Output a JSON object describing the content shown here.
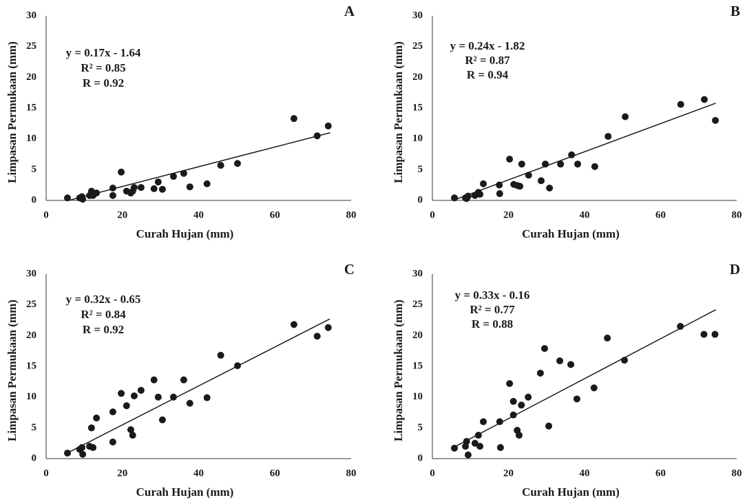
{
  "chart_data": [
    {
      "type": "scatter",
      "title": "A",
      "annotations": [
        "y = 0.17x - 1.64",
        "R² = 0.85",
        "R = 0.92"
      ],
      "x_label": "Curah Hujan (mm)",
      "y_label": "Limpasan Permukaan (mm)",
      "color": "#1a1a1a",
      "xlim": [
        0,
        80
      ],
      "xticks": [
        0,
        20,
        40,
        60,
        80
      ],
      "ylim": [
        0,
        30
      ],
      "yticks": [
        0,
        5,
        10,
        15,
        20,
        25,
        30
      ],
      "x": [
        5.6,
        8.8,
        9.6,
        9.4,
        11.4,
        11.9,
        12.3,
        13.2,
        17.5,
        17.5,
        19.7,
        21.1,
        22.2,
        22.7,
        23.1,
        24.9,
        28.3,
        29.4,
        30.5,
        33.4,
        36.1,
        37.7,
        42.2,
        45.8,
        50.2,
        65.0,
        71.1,
        74.0
      ],
      "values": [
        0.4,
        0.4,
        0.2,
        0.6,
        0.8,
        1.5,
        0.8,
        1.2,
        2.0,
        0.8,
        4.6,
        1.5,
        1.2,
        1.5,
        2.1,
        2.1,
        1.9,
        3.0,
        1.8,
        3.9,
        4.4,
        2.2,
        2.7,
        5.7,
        6.0,
        13.3,
        10.5,
        12.1
      ],
      "trendline": {
        "x": [
          6.5,
          74.5
        ],
        "values": [
          0.1,
          11.0
        ]
      }
    },
    {
      "type": "scatter",
      "title": "B",
      "annotations": [
        "y = 0.24x - 1.82",
        "R² = 0.87",
        "R = 0.94"
      ],
      "x_label": "Curah Hujan (mm)",
      "y_label": "Limpasan Permukaan (mm)",
      "color": "#1a1a1a",
      "xlim": [
        0,
        80
      ],
      "xticks": [
        0,
        20,
        40,
        60,
        80
      ],
      "ylim": [
        0,
        30
      ],
      "yticks": [
        0,
        5,
        10,
        15,
        20,
        25,
        30
      ],
      "x": [
        5.8,
        8.7,
        9.4,
        9.0,
        11.2,
        12.1,
        12.5,
        13.4,
        17.6,
        17.7,
        20.3,
        21.4,
        22.4,
        23.0,
        23.5,
        25.3,
        28.6,
        29.7,
        30.8,
        33.7,
        36.6,
        38.2,
        42.7,
        46.2,
        50.7,
        65.3,
        71.5,
        74.4
      ],
      "values": [
        0.4,
        0.4,
        0.7,
        0.3,
        0.8,
        1.3,
        1.0,
        2.7,
        2.5,
        1.1,
        6.7,
        2.6,
        2.4,
        2.3,
        5.9,
        4.1,
        3.2,
        5.9,
        2.0,
        5.9,
        7.4,
        5.9,
        5.5,
        10.4,
        13.6,
        15.6,
        16.4,
        13.0
      ],
      "trendline": {
        "x": [
          6.3,
          74.5
        ],
        "values": [
          0.2,
          15.8
        ]
      }
    },
    {
      "type": "scatter",
      "title": "C",
      "annotations": [
        "y = 0.32x - 0.65",
        "R² = 0.84",
        "R = 0.92"
      ],
      "x_label": "Curah Hujan (mm)",
      "y_label": "Limpasan Permukaan (mm)",
      "color": "#1a1a1a",
      "xlim": [
        0,
        80
      ],
      "xticks": [
        0,
        20,
        40,
        60,
        80
      ],
      "ylim": [
        0,
        30
      ],
      "yticks": [
        0,
        5,
        10,
        15,
        20,
        25,
        30
      ],
      "x": [
        5.6,
        8.8,
        9.6,
        9.4,
        11.4,
        11.9,
        12.3,
        13.2,
        17.5,
        17.5,
        19.7,
        21.1,
        22.2,
        22.7,
        23.1,
        24.9,
        28.3,
        29.4,
        30.5,
        33.4,
        36.1,
        37.7,
        42.2,
        45.8,
        50.2,
        65.0,
        71.1,
        74.0
      ],
      "values": [
        0.9,
        1.5,
        0.7,
        1.8,
        2.0,
        5.0,
        1.8,
        6.6,
        7.6,
        2.7,
        10.6,
        8.6,
        4.7,
        3.8,
        10.2,
        11.1,
        12.8,
        10.0,
        6.3,
        10.0,
        12.8,
        9.0,
        9.9,
        16.8,
        15.1,
        21.8,
        19.9,
        21.3
      ],
      "trendline": {
        "x": [
          5.2,
          74.4
        ],
        "values": [
          0.8,
          22.7
        ]
      }
    },
    {
      "type": "scatter",
      "title": "D",
      "annotations": [
        "y = 0.33x - 0.16",
        "R² = 0.77",
        "R = 0.88"
      ],
      "x_label": "Curah Hujan (mm)",
      "y_label": "Limpasan Permukaan (mm)",
      "color": "#1a1a1a",
      "xlim": [
        0,
        80
      ],
      "xticks": [
        0,
        20,
        40,
        60,
        80
      ],
      "ylim": [
        0,
        30
      ],
      "yticks": [
        0,
        5,
        10,
        15,
        20,
        25,
        30
      ],
      "x": [
        5.8,
        8.7,
        9.4,
        9.0,
        11.2,
        12.1,
        12.5,
        13.4,
        17.7,
        17.9,
        20.3,
        21.3,
        21.3,
        22.3,
        22.8,
        23.4,
        25.2,
        28.4,
        29.5,
        30.6,
        33.5,
        36.4,
        38.0,
        42.5,
        46.0,
        50.5,
        65.2,
        71.4,
        74.3
      ],
      "values": [
        1.7,
        2.0,
        0.6,
        2.8,
        2.5,
        3.8,
        2.0,
        6.0,
        6.0,
        1.8,
        12.2,
        9.3,
        7.1,
        4.6,
        3.8,
        8.7,
        10.0,
        13.9,
        17.9,
        5.3,
        15.9,
        15.3,
        9.7,
        11.5,
        19.6,
        16.0,
        21.5,
        20.2,
        20.2
      ],
      "trendline": {
        "x": [
          4.9,
          74.5
        ],
        "values": [
          1.6,
          24.2
        ]
      }
    }
  ]
}
